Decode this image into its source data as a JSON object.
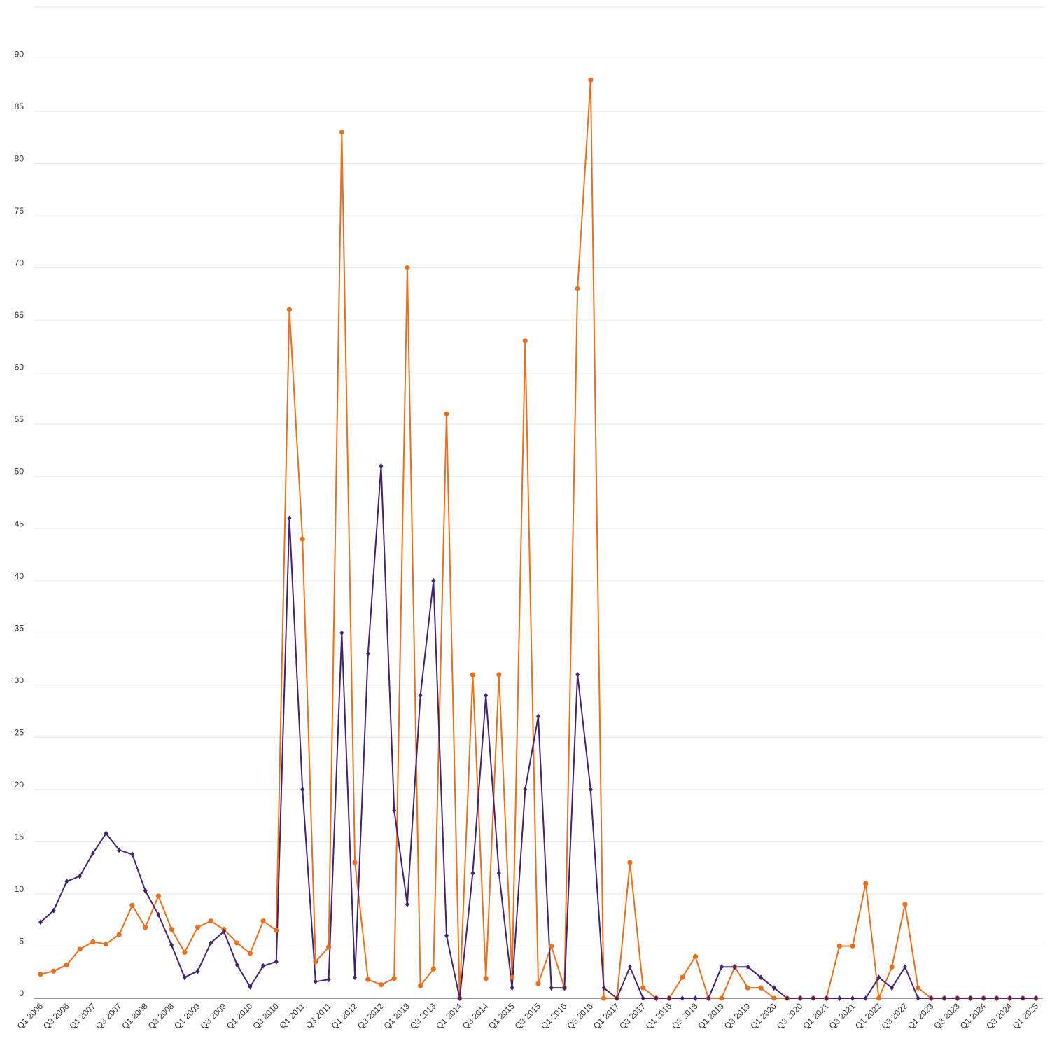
{
  "chart_data": {
    "type": "line",
    "title": "",
    "xlabel": "",
    "ylabel": "",
    "ylim": [
      0,
      95
    ],
    "yticks": [
      0,
      5,
      10,
      15,
      20,
      25,
      30,
      35,
      40,
      45,
      50,
      55,
      60,
      65,
      70,
      75,
      80,
      85,
      90
    ],
    "grid": true,
    "legend": "none",
    "categories": [
      "Q1 2006",
      "Q2 2006",
      "Q3 2006",
      "Q4 2006",
      "Q1 2007",
      "Q2 2007",
      "Q3 2007",
      "Q4 2007",
      "Q1 2008",
      "Q2 2008",
      "Q3 2008",
      "Q4 2008",
      "Q1 2009",
      "Q2 2009",
      "Q3 2009",
      "Q4 2009",
      "Q1 2010",
      "Q2 2010",
      "Q3 2010",
      "Q4 2010",
      "Q1 2011",
      "Q2 2011",
      "Q3 2011",
      "Q4 2011",
      "Q1 2012",
      "Q2 2012",
      "Q3 2012",
      "Q4 2012",
      "Q1 2013",
      "Q2 2013",
      "Q3 2013",
      "Q4 2013",
      "Q1 2014",
      "Q2 2014",
      "Q3 2014",
      "Q4 2014",
      "Q1 2015",
      "Q2 2015",
      "Q3 2015",
      "Q4 2015",
      "Q1 2016",
      "Q2 2016",
      "Q3 2016",
      "Q4 2016",
      "Q1 2017",
      "Q2 2017",
      "Q3 2017",
      "Q4 2017",
      "Q1 2018",
      "Q2 2018",
      "Q3 2018",
      "Q4 2018",
      "Q1 2019",
      "Q2 2019",
      "Q3 2019",
      "Q4 2019",
      "Q1 2020",
      "Q2 2020",
      "Q3 2020",
      "Q4 2020",
      "Q1 2021",
      "Q2 2021",
      "Q3 2021",
      "Q4 2021",
      "Q1 2022",
      "Q2 2022",
      "Q3 2022",
      "Q4 2022",
      "Q1 2023",
      "Q2 2023",
      "Q3 2023",
      "Q4 2023",
      "Q1 2024",
      "Q2 2024",
      "Q3 2024",
      "Q4 2024",
      "Q1 2025"
    ],
    "xtick_labels": [
      "Q1 2006",
      "Q3 2006",
      "Q1 2007",
      "Q3 2007",
      "Q1 2008",
      "Q3 2008",
      "Q1 2009",
      "Q3 2009",
      "Q1 2010",
      "Q3 2010",
      "Q1 2011",
      "Q3 2011",
      "Q1 2012",
      "Q3 2012",
      "Q1 2013",
      "Q3 2013",
      "Q1 2014",
      "Q3 2014",
      "Q1 2015",
      "Q3 2015",
      "Q1 2016",
      "Q3 2016",
      "Q1 2017",
      "Q3 2017",
      "Q1 2018",
      "Q3 2018",
      "Q1 2019",
      "Q3 2019",
      "Q1 2020",
      "Q3 2020",
      "Q1 2021",
      "Q3 2021",
      "Q1 2022",
      "Q3 2022",
      "Q1 2023",
      "Q3 2023",
      "Q1 2024",
      "Q3 2024",
      "Q1 2025"
    ],
    "series": [
      {
        "color": "#e8701f",
        "marker": "circle",
        "values": [
          2.3,
          2.6,
          3.2,
          4.7,
          5.4,
          5.2,
          6.1,
          8.9,
          6.8,
          9.8,
          6.6,
          4.4,
          6.8,
          7.4,
          6.6,
          5.3,
          4.3,
          7.4,
          6.5,
          66,
          44,
          3.5,
          4.9,
          83,
          13,
          1.8,
          1.3,
          1.9,
          70,
          1.2,
          2.8,
          56,
          0,
          31,
          1.9,
          31,
          2,
          63,
          1.4,
          5,
          1,
          68,
          88,
          0,
          0,
          13,
          1,
          0,
          0,
          2,
          4,
          0,
          0,
          3,
          1,
          1,
          0,
          0,
          0,
          0,
          0,
          5,
          5,
          11,
          0,
          3,
          9,
          1,
          0,
          0,
          0,
          0,
          0,
          0,
          0,
          0,
          0
        ]
      },
      {
        "color": "#432371",
        "marker": "diamond",
        "values": [
          7.3,
          8.4,
          11.2,
          11.7,
          13.9,
          15.8,
          14.2,
          13.8,
          10.3,
          8,
          5.1,
          2,
          2.6,
          5.3,
          6.4,
          3.2,
          1.1,
          3.1,
          3.5,
          46,
          20,
          1.6,
          1.8,
          35,
          2,
          33,
          51,
          18,
          9,
          29,
          40,
          6,
          0,
          12,
          29,
          12,
          1,
          20,
          27,
          1,
          1,
          31,
          20,
          1,
          0,
          3,
          0,
          0,
          0,
          0,
          0,
          0,
          3,
          3,
          3,
          2,
          1,
          0,
          0,
          0,
          0,
          0,
          0,
          0,
          2,
          1,
          3,
          0,
          0,
          0,
          0,
          0,
          0,
          0,
          0,
          0,
          0
        ]
      }
    ]
  }
}
